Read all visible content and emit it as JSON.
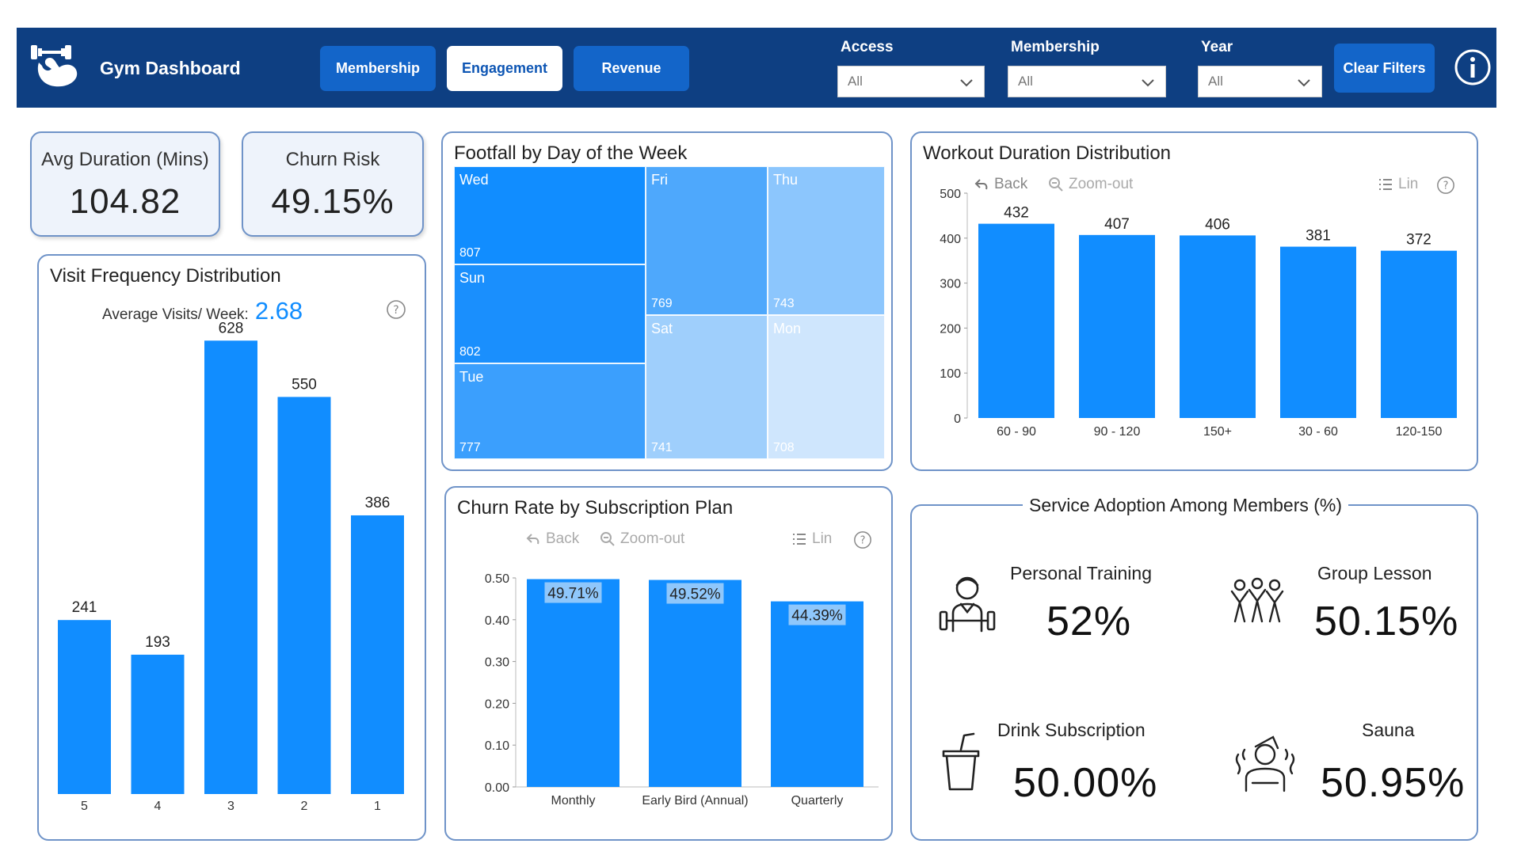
{
  "header": {
    "title": "Gym Dashboard",
    "tabs": [
      {
        "label": "Membership",
        "active": false
      },
      {
        "label": "Engagement",
        "active": true
      },
      {
        "label": "Revenue",
        "active": false
      }
    ],
    "filters": [
      {
        "label": "Access",
        "value": "All"
      },
      {
        "label": "Membership",
        "value": "All"
      },
      {
        "label": "Year",
        "value": "All"
      }
    ],
    "clear_filters_label": "Clear Filters",
    "info_icon": "info-icon"
  },
  "kpis": {
    "avg_duration": {
      "label": "Avg Duration (Mins)",
      "value": "104.82"
    },
    "churn_risk": {
      "label": "Churn Risk",
      "value": "49.15%"
    }
  },
  "visit_frequency": {
    "title": "Visit Frequency Distribution",
    "avg_label": "Average Visits/ Week:",
    "avg_value": "2.68"
  },
  "footfall": {
    "title": "Footfall by Day of the Week"
  },
  "workout_duration": {
    "title": "Workout Duration Distribution"
  },
  "churn_rate": {
    "title": "Churn Rate by Subscription Plan"
  },
  "toolbar": {
    "back_label": "Back",
    "zoom_out_label": "Zoom-out",
    "lin_label": "Lin"
  },
  "service_adoption": {
    "title": "Service Adoption Among Members (%)",
    "items": [
      {
        "label": "Personal Training",
        "value": "52%",
        "icon": "trainer-icon"
      },
      {
        "label": "Group Lesson",
        "value": "50.15%",
        "icon": "group-icon"
      },
      {
        "label": "Drink Subscription",
        "value": "50.00%",
        "icon": "drink-cup-icon"
      },
      {
        "label": "Sauna",
        "value": "50.95%",
        "icon": "sauna-icon"
      }
    ]
  },
  "colors": {
    "header_bg": "#0e3f82",
    "button_bg": "#1365c9",
    "bar": "#118dff",
    "panel_border": "#6f93c8"
  },
  "chart_data": [
    {
      "id": "visit_frequency",
      "type": "bar",
      "categories": [
        "5",
        "4",
        "3",
        "2",
        "1"
      ],
      "values": [
        241,
        193,
        628,
        550,
        386
      ],
      "ylim": [
        0,
        700
      ]
    },
    {
      "id": "footfall",
      "type": "heatmap",
      "categories": [
        "Wed",
        "Sun",
        "Tue",
        "Fri",
        "Thu",
        "Sat",
        "Mon"
      ],
      "values": [
        807,
        802,
        777,
        769,
        743,
        741,
        708
      ]
    },
    {
      "id": "workout_duration",
      "type": "bar",
      "categories": [
        "60 - 90",
        "90 - 120",
        "150+",
        "30 - 60",
        "120-150"
      ],
      "values": [
        432,
        407,
        406,
        381,
        372
      ],
      "yticks": [
        0,
        100,
        200,
        300,
        400,
        500
      ],
      "ylim": [
        0,
        500
      ]
    },
    {
      "id": "churn_rate",
      "type": "bar",
      "categories": [
        "Monthly",
        "Early Bird (Annual)",
        "Quarterly"
      ],
      "values": [
        0.4971,
        0.4952,
        0.4439
      ],
      "data_labels": [
        "49.71%",
        "49.52%",
        "44.39%"
      ],
      "yticks": [
        "0.00",
        "0.10",
        "0.20",
        "0.30",
        "0.40",
        "0.50"
      ],
      "ylim": [
        0,
        0.5
      ]
    }
  ]
}
